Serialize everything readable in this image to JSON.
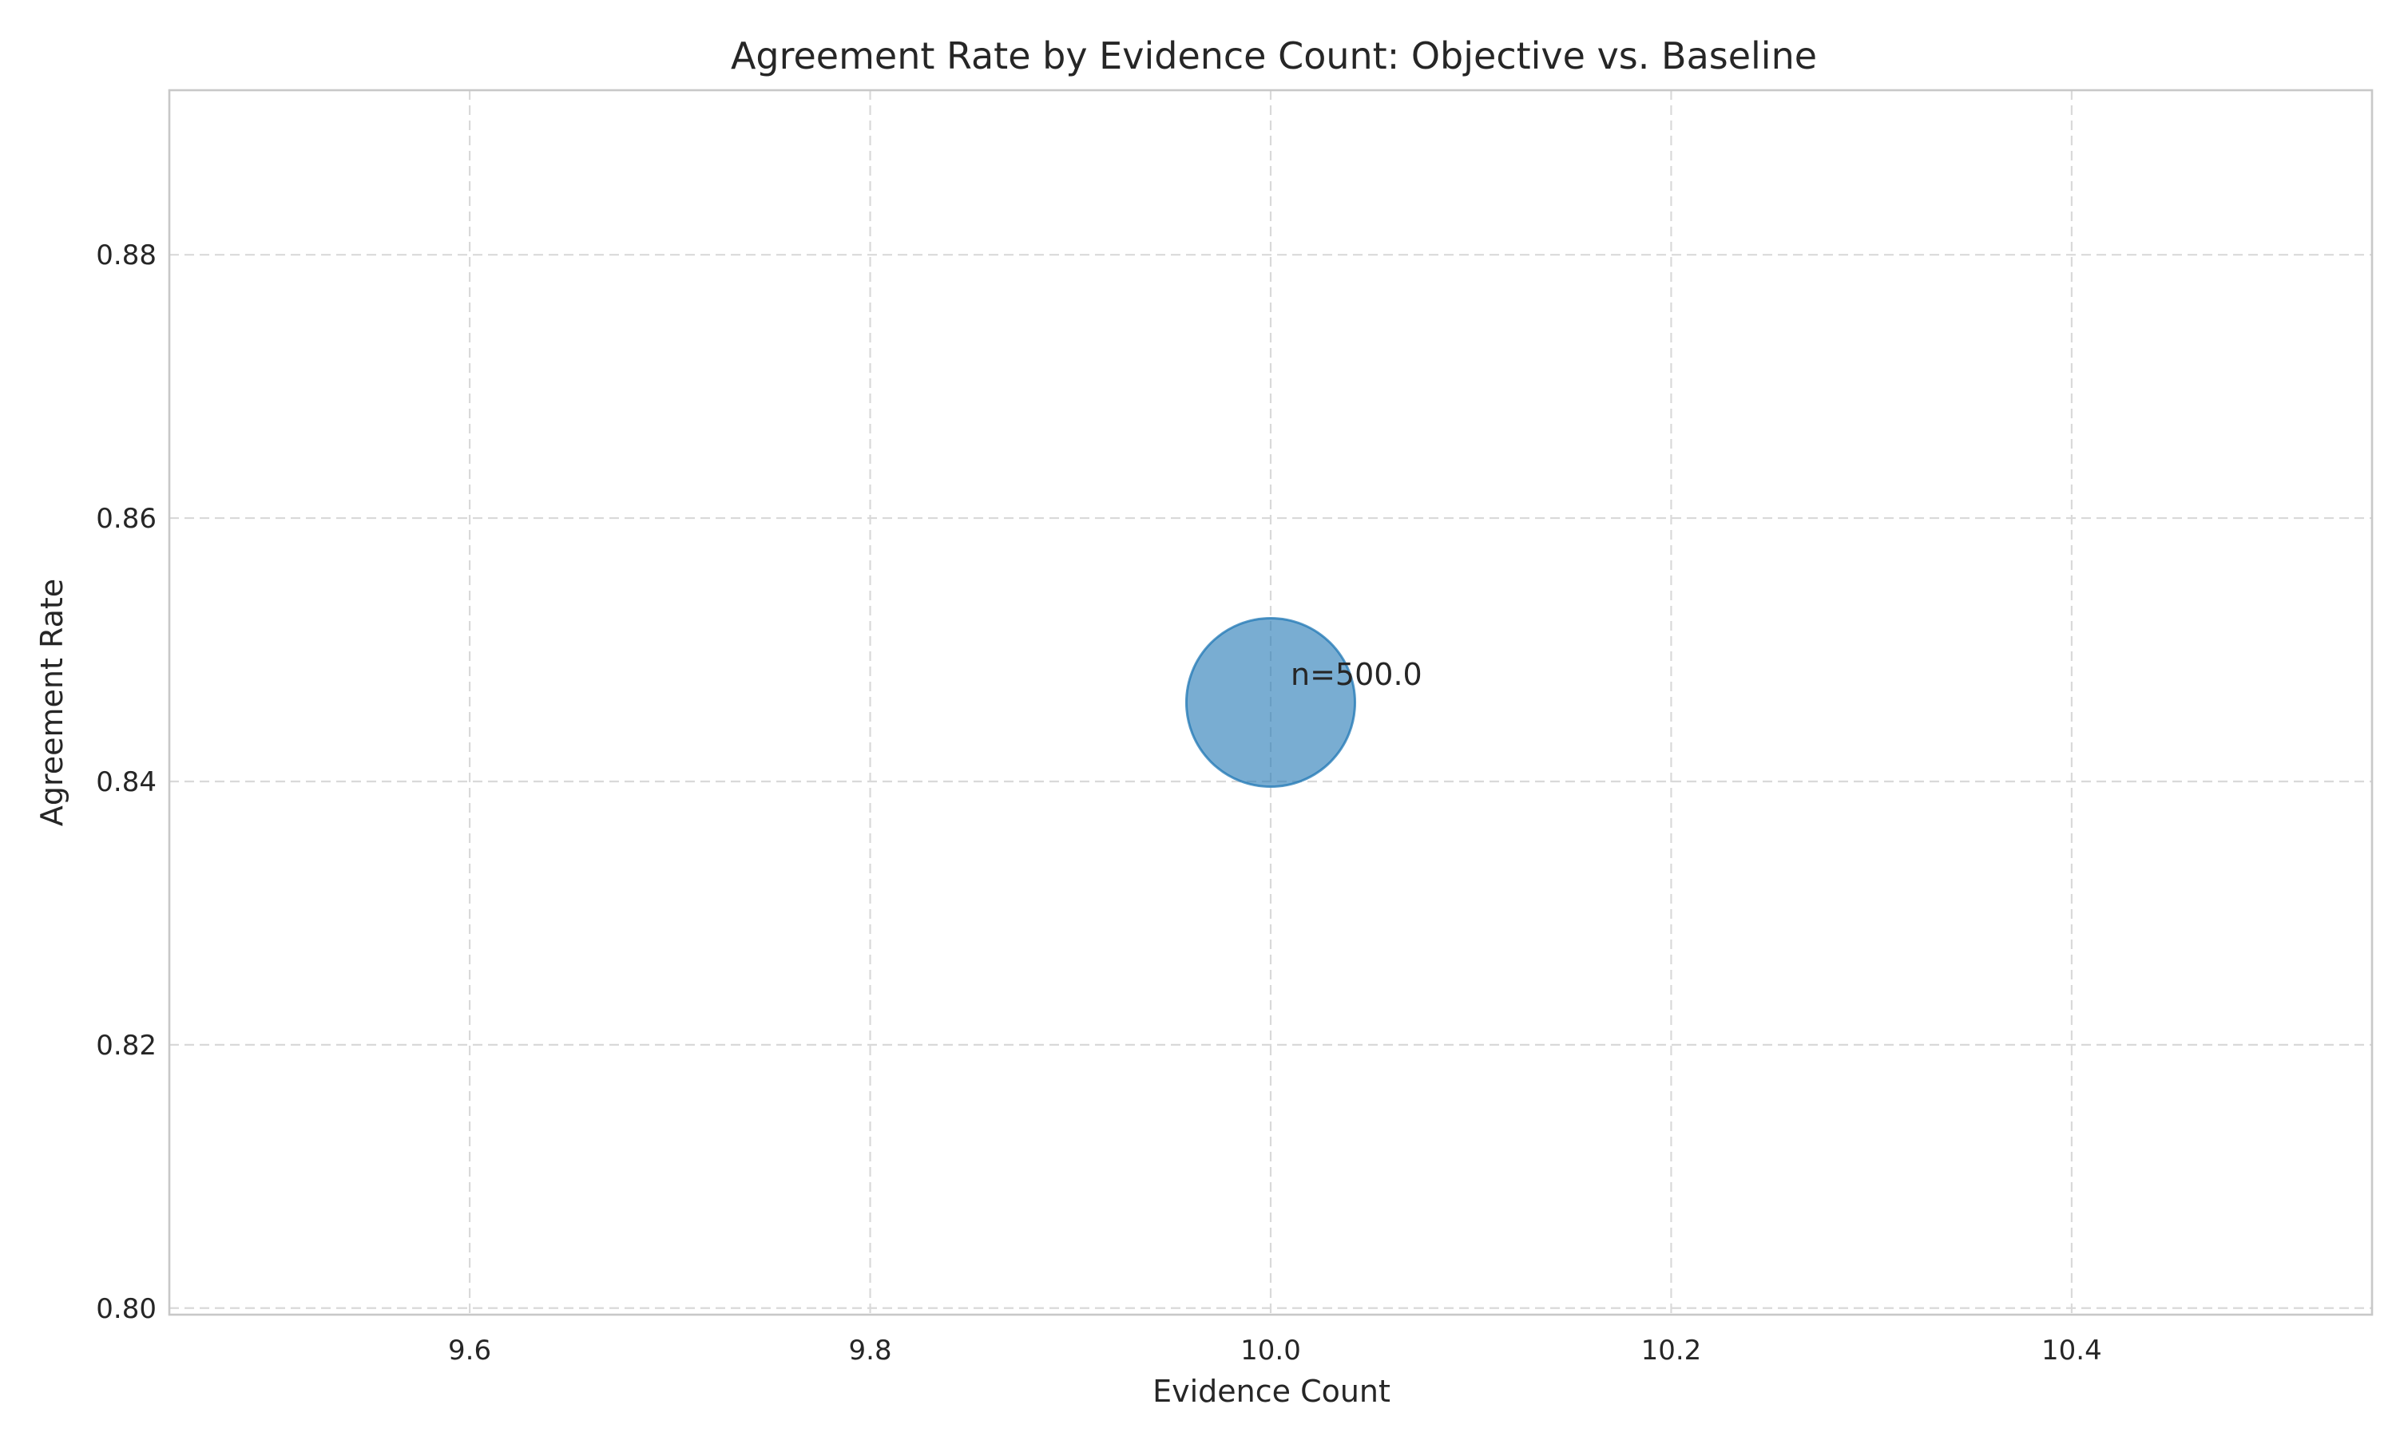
{
  "chart_data": {
    "type": "scatter",
    "title": "Agreement Rate by Evidence Count: Objective vs. Baseline",
    "xlabel": "Evidence Count",
    "ylabel": "Agreement Rate",
    "xlim": [
      9.45,
      10.55
    ],
    "ylim": [
      0.7995,
      0.8925
    ],
    "xticks": [
      9.6,
      9.8,
      10.0,
      10.2,
      10.4
    ],
    "xtick_labels": [
      "9.6",
      "9.8",
      "10.0",
      "10.2",
      "10.4"
    ],
    "yticks": [
      0.8,
      0.82,
      0.84,
      0.86,
      0.88
    ],
    "ytick_labels": [
      "0.80",
      "0.82",
      "0.84",
      "0.86",
      "0.88"
    ],
    "grid": true,
    "points": [
      {
        "x": 10.0,
        "y": 0.846,
        "n": 500.0,
        "label": "n=500.0",
        "color": "#1f77b4",
        "alpha": 0.6
      }
    ]
  }
}
